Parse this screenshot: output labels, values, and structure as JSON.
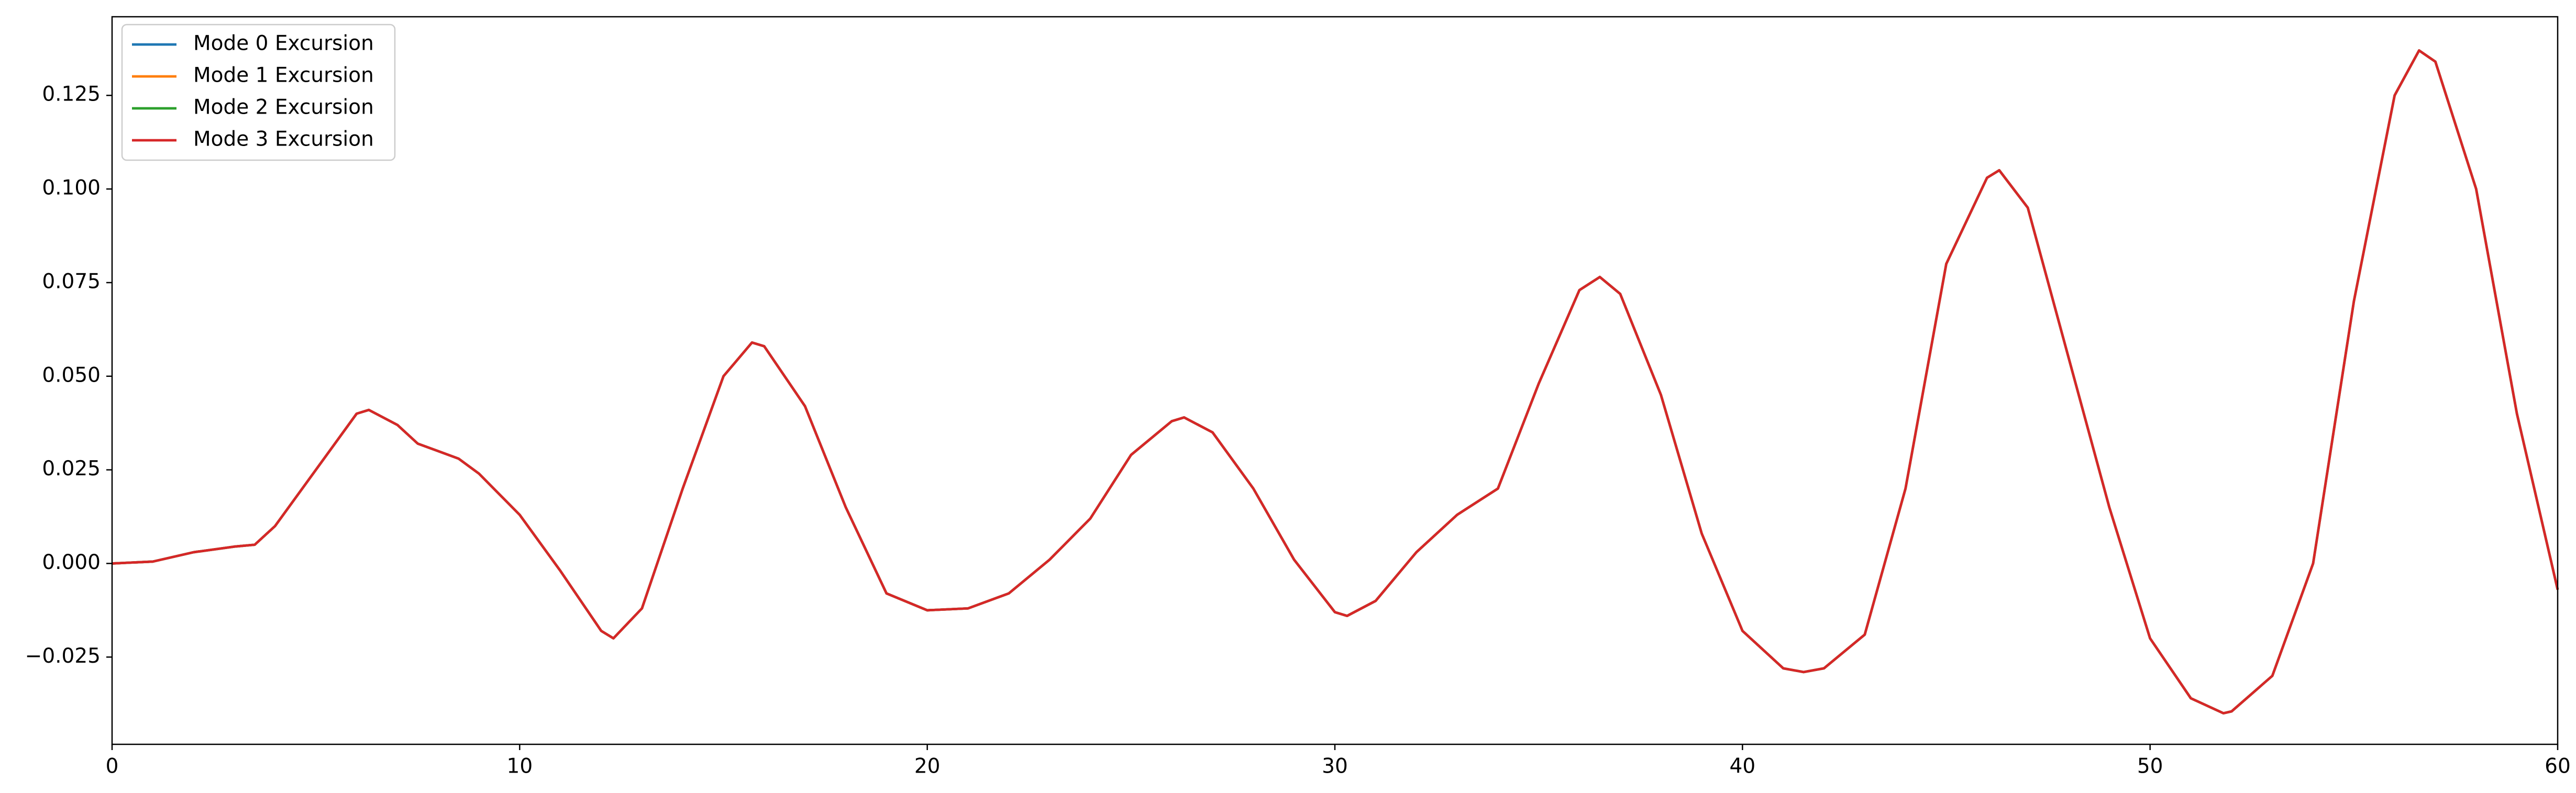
{
  "chart_data": {
    "type": "line",
    "x": [
      0,
      1,
      2,
      3,
      3.5,
      4,
      5,
      6,
      6.3,
      7,
      7.5,
      8,
      8.5,
      9,
      10,
      11,
      12,
      12.3,
      13,
      14,
      15,
      15.7,
      16,
      17,
      18,
      19,
      20,
      21,
      22,
      23,
      24,
      25,
      26,
      26.3,
      27,
      28,
      29,
      30,
      30.3,
      31,
      32,
      33,
      34,
      35,
      36,
      36.5,
      37,
      38,
      39,
      40,
      41,
      41.5,
      42,
      43,
      44,
      45,
      46,
      46.3,
      47,
      48,
      49,
      50,
      51,
      51.8,
      52,
      53,
      54,
      55,
      56,
      56.6,
      57,
      58,
      59,
      60
    ],
    "series": [
      {
        "name": "Mode 0 Excursion",
        "color": "#1f77b4",
        "values": [
          0,
          0.0005,
          0.003,
          0.0045,
          0.005,
          0.01,
          0.025,
          0.04,
          0.041,
          0.037,
          0.032,
          0.03,
          0.028,
          0.024,
          0.013,
          -0.002,
          -0.018,
          -0.02,
          -0.012,
          0.02,
          0.05,
          0.059,
          0.058,
          0.042,
          0.015,
          -0.008,
          -0.0125,
          -0.012,
          -0.008,
          0.001,
          0.012,
          0.029,
          0.038,
          0.039,
          0.035,
          0.02,
          0.001,
          -0.013,
          -0.014,
          -0.01,
          0.003,
          0.013,
          0.02,
          0.048,
          0.073,
          0.0765,
          0.072,
          0.045,
          0.008,
          -0.018,
          -0.028,
          -0.029,
          -0.028,
          -0.019,
          0.02,
          0.08,
          0.103,
          0.105,
          0.095,
          0.055,
          0.015,
          -0.02,
          -0.036,
          -0.04,
          -0.0395,
          -0.03,
          0,
          0.07,
          0.125,
          0.137,
          0.134,
          0.1,
          0.04,
          -0.007
        ]
      },
      {
        "name": "Mode 1 Excursion",
        "color": "#ff7f0e",
        "values": [
          0,
          0.0005,
          0.003,
          0.0045,
          0.005,
          0.01,
          0.025,
          0.04,
          0.041,
          0.037,
          0.032,
          0.03,
          0.028,
          0.024,
          0.013,
          -0.002,
          -0.018,
          -0.02,
          -0.012,
          0.02,
          0.05,
          0.059,
          0.058,
          0.042,
          0.015,
          -0.008,
          -0.0125,
          -0.012,
          -0.008,
          0.001,
          0.012,
          0.029,
          0.038,
          0.039,
          0.035,
          0.02,
          0.001,
          -0.013,
          -0.014,
          -0.01,
          0.003,
          0.013,
          0.02,
          0.048,
          0.073,
          0.0765,
          0.072,
          0.045,
          0.008,
          -0.018,
          -0.028,
          -0.029,
          -0.028,
          -0.019,
          0.02,
          0.08,
          0.103,
          0.105,
          0.095,
          0.055,
          0.015,
          -0.02,
          -0.036,
          -0.04,
          -0.0395,
          -0.03,
          0,
          0.07,
          0.125,
          0.137,
          0.134,
          0.1,
          0.04,
          -0.007
        ]
      },
      {
        "name": "Mode 2 Excursion",
        "color": "#2ca02c",
        "values": [
          0,
          0.0005,
          0.003,
          0.0045,
          0.005,
          0.01,
          0.025,
          0.04,
          0.041,
          0.037,
          0.032,
          0.03,
          0.028,
          0.024,
          0.013,
          -0.002,
          -0.018,
          -0.02,
          -0.012,
          0.02,
          0.05,
          0.059,
          0.058,
          0.042,
          0.015,
          -0.008,
          -0.0125,
          -0.012,
          -0.008,
          0.001,
          0.012,
          0.029,
          0.038,
          0.039,
          0.035,
          0.02,
          0.001,
          -0.013,
          -0.014,
          -0.01,
          0.003,
          0.013,
          0.02,
          0.048,
          0.073,
          0.0765,
          0.072,
          0.045,
          0.008,
          -0.018,
          -0.028,
          -0.029,
          -0.028,
          -0.019,
          0.02,
          0.08,
          0.103,
          0.105,
          0.095,
          0.055,
          0.015,
          -0.02,
          -0.036,
          -0.04,
          -0.0395,
          -0.03,
          0,
          0.07,
          0.125,
          0.137,
          0.134,
          0.1,
          0.04,
          -0.007
        ]
      },
      {
        "name": "Mode 3 Excursion",
        "color": "#d62728",
        "values": [
          0,
          0.0005,
          0.003,
          0.0045,
          0.005,
          0.01,
          0.025,
          0.04,
          0.041,
          0.037,
          0.032,
          0.03,
          0.028,
          0.024,
          0.013,
          -0.002,
          -0.018,
          -0.02,
          -0.012,
          0.02,
          0.05,
          0.059,
          0.058,
          0.042,
          0.015,
          -0.008,
          -0.0125,
          -0.012,
          -0.008,
          0.001,
          0.012,
          0.029,
          0.038,
          0.039,
          0.035,
          0.02,
          0.001,
          -0.013,
          -0.014,
          -0.01,
          0.003,
          0.013,
          0.02,
          0.048,
          0.073,
          0.0765,
          0.072,
          0.045,
          0.008,
          -0.018,
          -0.028,
          -0.029,
          -0.028,
          -0.019,
          0.02,
          0.08,
          0.103,
          0.105,
          0.095,
          0.055,
          0.015,
          -0.02,
          -0.036,
          -0.04,
          -0.0395,
          -0.03,
          0,
          0.07,
          0.125,
          0.137,
          0.134,
          0.1,
          0.04,
          -0.007
        ]
      }
    ],
    "xlim": [
      0,
      60
    ],
    "xticks": [
      0,
      10,
      20,
      30,
      40,
      50,
      60
    ],
    "ylim": [
      -0.0483,
      0.146
    ],
    "yticks": [
      {
        "value": -0.025,
        "label": "−0.025"
      },
      {
        "value": 0,
        "label": "0.000"
      },
      0.025,
      {
        "value": 0.05,
        "label": "0.050"
      },
      0.075,
      {
        "value": 0.1,
        "label": "0.100"
      },
      0.125
    ],
    "legend": "upper-left",
    "grid": false
  }
}
